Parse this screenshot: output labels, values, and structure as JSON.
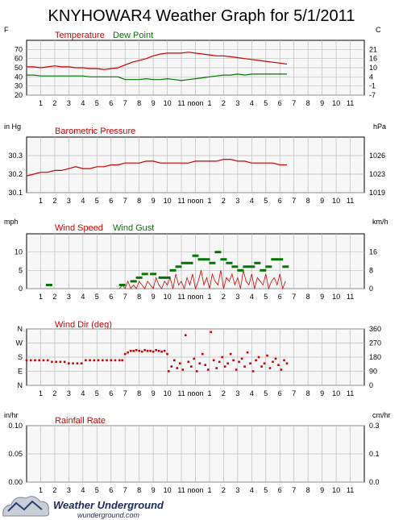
{
  "title": "KNYHOWAR4 Weather Graph for 5/1/2011",
  "colors": {
    "temperature": "#cc0000",
    "dew_point": "#007700",
    "pressure": "#cc0000",
    "wind_speed": "#cc0000",
    "wind_gust": "#007700",
    "wind_dir": "#cc0000",
    "grid": "#bbbbbb",
    "plot_bg": "#f7f7f7"
  },
  "x_ticks": [
    "1",
    "2",
    "3",
    "4",
    "5",
    "6",
    "7",
    "8",
    "9",
    "10",
    "11",
    "noon",
    "1",
    "2",
    "3",
    "4",
    "5",
    "6",
    "7",
    "8",
    "9",
    "10",
    "11"
  ],
  "logo": {
    "icon": "cloud-icon",
    "name": "Weather Underground",
    "url": "wunderground.com"
  },
  "chart_data": [
    {
      "type": "line",
      "title": "Temperature / Dew Point",
      "left_unit": "F",
      "right_unit": "C",
      "x_hours_range": [
        0,
        24
      ],
      "ylim": [
        20,
        80
      ],
      "left_ticks": [
        "70",
        "60",
        "50",
        "40",
        "30",
        "20"
      ],
      "right_ticks": [
        "21",
        "16",
        "10",
        "4",
        "-1",
        "-7"
      ],
      "series": [
        {
          "name": "Temperature",
          "x": [
            0,
            0.5,
            1,
            1.5,
            2,
            2.5,
            3,
            3.5,
            4,
            4.5,
            5,
            5.5,
            6,
            6.5,
            7,
            7.5,
            8,
            8.5,
            9,
            9.5,
            10,
            10.5,
            11,
            11.5,
            12,
            12.5,
            13,
            13.5,
            14,
            14.5,
            15,
            15.5,
            16,
            16.5,
            17,
            17.5,
            18,
            18.5
          ],
          "values": [
            51,
            51,
            50,
            51,
            52,
            51,
            51,
            50,
            50,
            49,
            49,
            48,
            49,
            50,
            53,
            56,
            58,
            60,
            63,
            65,
            66,
            66,
            66,
            67,
            66,
            65,
            64,
            63,
            63,
            62,
            61,
            60,
            59,
            58,
            57,
            56,
            55,
            54
          ]
        },
        {
          "name": "Dew Point",
          "x": [
            0,
            0.5,
            1,
            1.5,
            2,
            2.5,
            3,
            3.5,
            4,
            4.5,
            5,
            5.5,
            6,
            6.5,
            7,
            7.5,
            8,
            8.5,
            9,
            9.5,
            10,
            10.5,
            11,
            11.5,
            12,
            12.5,
            13,
            13.5,
            14,
            14.5,
            15,
            15.5,
            16,
            16.5,
            17,
            17.5,
            18,
            18.5
          ],
          "values": [
            42,
            42,
            41,
            41,
            41,
            41,
            41,
            41,
            41,
            40,
            40,
            40,
            40,
            40,
            37,
            37,
            37,
            38,
            37,
            37,
            38,
            37,
            36,
            37,
            38,
            39,
            40,
            41,
            42,
            42,
            43,
            42,
            43,
            43,
            43,
            43,
            43,
            43
          ]
        }
      ]
    },
    {
      "type": "line",
      "title": "Barometric Pressure",
      "left_unit": "in Hg",
      "right_unit": "hPa",
      "x_hours_range": [
        0,
        24
      ],
      "ylim": [
        30.1,
        30.4
      ],
      "left_ticks": [
        "30.3",
        "30.2",
        "30.1"
      ],
      "right_ticks": [
        "1026",
        "1023",
        "1019"
      ],
      "series": [
        {
          "name": "Barometric Pressure",
          "x": [
            0,
            0.5,
            1,
            1.5,
            2,
            2.5,
            3,
            3.5,
            4,
            4.5,
            5,
            5.5,
            6,
            6.5,
            7,
            7.5,
            8,
            8.5,
            9,
            9.5,
            10,
            10.5,
            11,
            11.5,
            12,
            12.5,
            13,
            13.5,
            14,
            14.5,
            15,
            15.5,
            16,
            16.5,
            17,
            17.5,
            18,
            18.5
          ],
          "values": [
            30.19,
            30.2,
            30.21,
            30.21,
            30.22,
            30.22,
            30.23,
            30.24,
            30.23,
            30.23,
            30.24,
            30.24,
            30.25,
            30.25,
            30.26,
            30.26,
            30.26,
            30.27,
            30.27,
            30.26,
            30.26,
            30.26,
            30.26,
            30.26,
            30.27,
            30.27,
            30.27,
            30.27,
            30.28,
            30.28,
            30.27,
            30.27,
            30.26,
            30.26,
            30.26,
            30.26,
            30.25,
            30.25
          ]
        }
      ]
    },
    {
      "type": "line",
      "title": "Wind Speed / Wind Gust",
      "left_unit": "mph",
      "right_unit": "km/h",
      "x_hours_range": [
        0,
        24
      ],
      "ylim": [
        0,
        15
      ],
      "left_ticks": [
        "10",
        "5",
        "0"
      ],
      "right_ticks": [
        "16",
        "8",
        "0"
      ],
      "series": [
        {
          "name": "Wind Speed",
          "x": [
            6.6,
            6.8,
            7,
            7.2,
            7.4,
            7.6,
            7.8,
            8,
            8.2,
            8.4,
            8.6,
            8.8,
            9,
            9.2,
            9.4,
            9.6,
            9.8,
            10,
            10.2,
            10.4,
            10.6,
            10.8,
            11,
            11.2,
            11.4,
            11.6,
            11.8,
            12,
            12.2,
            12.4,
            12.6,
            12.8,
            13,
            13.2,
            13.4,
            13.6,
            13.8,
            14,
            14.2,
            14.4,
            14.6,
            14.8,
            15,
            15.2,
            15.4,
            15.6,
            15.8,
            16,
            16.2,
            16.4,
            16.6,
            16.8,
            17,
            17.2,
            17.4,
            17.6,
            17.8,
            18,
            18.2,
            18.4
          ],
          "values": [
            0,
            1,
            0,
            2,
            0,
            1,
            0,
            2,
            1,
            0,
            2,
            1,
            0,
            3,
            1,
            0,
            2,
            1,
            3,
            0,
            4,
            1,
            2,
            0,
            3,
            1,
            4,
            0,
            2,
            5,
            1,
            3,
            0,
            4,
            2,
            1,
            5,
            0,
            3,
            2,
            4,
            1,
            3,
            0,
            5,
            2,
            1,
            4,
            0,
            3,
            2,
            1,
            4,
            0,
            2,
            3,
            1,
            4,
            0,
            2
          ]
        },
        {
          "name": "Wind Gust",
          "x": [
            1.6,
            6.8,
            7.6,
            8,
            8.4,
            9,
            9.6,
            10,
            10.4,
            10.8,
            11.2,
            11.6,
            12,
            12.4,
            12.8,
            13.2,
            13.6,
            14,
            14.4,
            14.8,
            15.2,
            15.6,
            16,
            16.4,
            16.8,
            17.2,
            17.6,
            18,
            18.4
          ],
          "values": [
            1,
            1,
            2,
            3,
            4,
            4,
            3,
            3,
            5,
            6,
            7,
            7,
            9,
            8,
            8,
            7,
            10,
            8,
            7,
            6,
            5,
            6,
            6,
            7,
            5,
            6,
            8,
            8,
            6
          ]
        }
      ]
    },
    {
      "type": "scatter",
      "title": "Wind Dir (deg)",
      "left_unit": "",
      "right_unit": "",
      "x_hours_range": [
        0,
        24
      ],
      "ylim": [
        0,
        360
      ],
      "left_ticks": [
        "N",
        "W",
        "S",
        "E",
        "N"
      ],
      "right_ticks": [
        "360",
        "270",
        "180",
        "90",
        "0"
      ],
      "series": [
        {
          "name": "Wind Dir (deg)",
          "x": [
            0,
            0.3,
            0.6,
            0.9,
            1.2,
            1.5,
            1.8,
            2.1,
            2.4,
            2.7,
            3,
            3.3,
            3.6,
            3.9,
            4.2,
            4.5,
            4.8,
            5.1,
            5.4,
            5.7,
            6,
            6.3,
            6.6,
            6.8,
            7,
            7.2,
            7.4,
            7.6,
            7.8,
            8,
            8.2,
            8.4,
            8.6,
            8.8,
            9,
            9.2,
            9.4,
            9.6,
            9.8,
            10,
            10.1,
            10.3,
            10.5,
            10.7,
            10.9,
            11.1,
            11.3,
            11.5,
            11.7,
            11.9,
            12.1,
            12.3,
            12.5,
            12.7,
            12.9,
            13.1,
            13.3,
            13.5,
            13.7,
            13.9,
            14.1,
            14.3,
            14.5,
            14.7,
            14.9,
            15.1,
            15.3,
            15.5,
            15.7,
            15.9,
            16.1,
            16.3,
            16.5,
            16.7,
            16.9,
            17.1,
            17.3,
            17.5,
            17.7,
            17.9,
            18.1,
            18.3,
            18.5
          ],
          "values": [
            160,
            160,
            160,
            160,
            160,
            160,
            150,
            150,
            150,
            150,
            140,
            140,
            140,
            140,
            160,
            160,
            160,
            160,
            160,
            160,
            160,
            160,
            160,
            160,
            200,
            210,
            220,
            220,
            225,
            220,
            215,
            225,
            220,
            220,
            215,
            225,
            220,
            215,
            220,
            200,
            90,
            120,
            160,
            110,
            140,
            100,
            320,
            150,
            120,
            170,
            90,
            140,
            200,
            130,
            100,
            340,
            160,
            110,
            150,
            180,
            120,
            140,
            200,
            160,
            100,
            150,
            170,
            120,
            210,
            140,
            90,
            160,
            180,
            120,
            140,
            190,
            110,
            150,
            170,
            130,
            100,
            160,
            140
          ]
        }
      ]
    },
    {
      "type": "line",
      "title": "Rainfall Rate",
      "left_unit": "in/hr",
      "right_unit": "cm/hr",
      "x_hours_range": [
        0,
        24
      ],
      "ylim": [
        0,
        0.1
      ],
      "left_ticks": [
        "0.10",
        "0.05",
        "0.00"
      ],
      "right_ticks": [
        "0.3",
        "0.1",
        "0.0"
      ],
      "series": [
        {
          "name": "Rainfall Rate",
          "x": [],
          "values": []
        }
      ]
    }
  ]
}
